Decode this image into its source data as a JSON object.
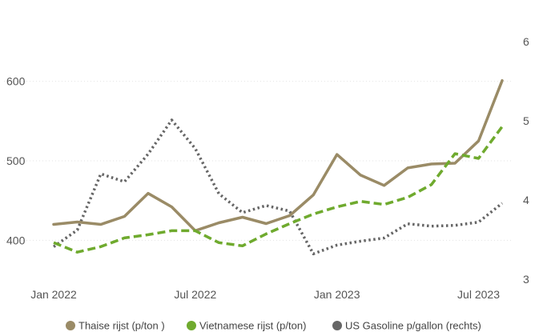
{
  "chart_data": {
    "type": "line",
    "title": "",
    "x_labels": [
      "Jan 2022",
      "Jul 2022",
      "Jan 2023",
      "Jul 2023"
    ],
    "x": [
      "2022-01",
      "2022-02",
      "2022-03",
      "2022-04",
      "2022-05",
      "2022-06",
      "2022-07",
      "2022-08",
      "2022-09",
      "2022-10",
      "2022-11",
      "2022-12",
      "2023-01",
      "2023-02",
      "2023-03",
      "2023-04",
      "2023-05",
      "2023-06",
      "2023-07",
      "2023-08"
    ],
    "y_left": {
      "ticks": [
        400,
        500,
        600
      ],
      "range": [
        350,
        650
      ]
    },
    "y_right": {
      "ticks": [
        3,
        4,
        5,
        6
      ],
      "range": [
        2.99,
        6.0
      ]
    },
    "grid": true,
    "legend_position": "bottom",
    "series": [
      {
        "name": "Thaise rijst (p/ton )",
        "axis": "left",
        "color": "#9a8b66",
        "style": "solid",
        "values": [
          420,
          423,
          420,
          430,
          459,
          442,
          412,
          422,
          429,
          421,
          431,
          457,
          508,
          482,
          469,
          491,
          496,
          497,
          525,
          601
        ]
      },
      {
        "name": "Vietnamese rijst (p/ton)",
        "axis": "left",
        "color": "#6faa2e",
        "style": "dashed",
        "values": [
          397,
          385,
          392,
          403,
          407,
          412,
          412,
          397,
          393,
          408,
          421,
          433,
          442,
          449,
          445,
          454,
          470,
          509,
          503,
          543
        ]
      },
      {
        "name": "US Gasoline p/gallon (rechts)",
        "axis": "right",
        "color": "#666666",
        "style": "dotted",
        "values": [
          3.41,
          3.62,
          4.33,
          4.23,
          4.58,
          5.01,
          4.65,
          4.08,
          3.84,
          3.93,
          3.86,
          3.32,
          3.43,
          3.48,
          3.52,
          3.7,
          3.67,
          3.68,
          3.72,
          3.96
        ]
      }
    ]
  }
}
